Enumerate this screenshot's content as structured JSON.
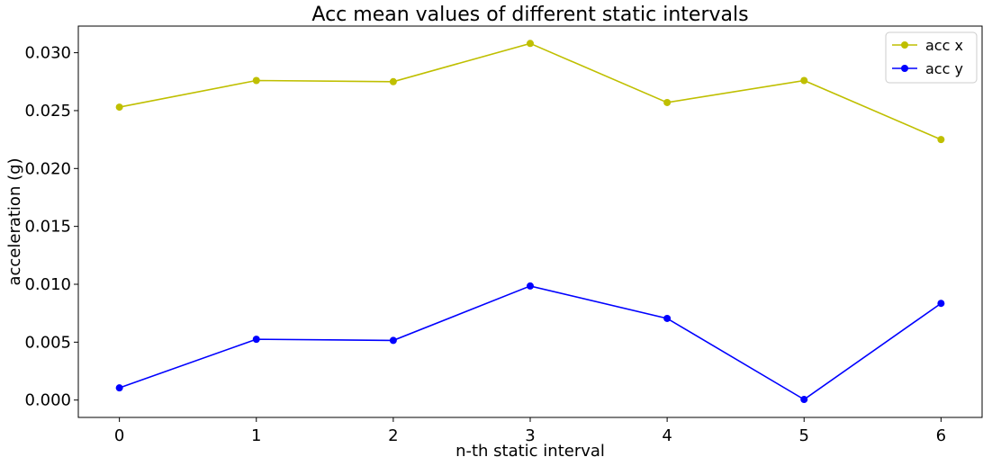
{
  "chart_data": {
    "type": "line",
    "title": "Acc mean values of different static intervals",
    "xlabel": "n-th static interval",
    "ylabel": "acceleration (g)",
    "x": [
      0,
      1,
      2,
      3,
      4,
      5,
      6
    ],
    "x_tick_labels": [
      "0",
      "1",
      "2",
      "3",
      "4",
      "5",
      "6"
    ],
    "y_ticks": [
      0.0,
      0.005,
      0.01,
      0.015,
      0.02,
      0.025,
      0.03
    ],
    "y_tick_labels": [
      "0.000",
      "0.005",
      "0.010",
      "0.015",
      "0.020",
      "0.025",
      "0.030"
    ],
    "xlim": [
      -0.3,
      6.3
    ],
    "ylim": [
      -0.0015,
      0.0323
    ],
    "grid": false,
    "legend_position": "top-right",
    "series": [
      {
        "name": "acc x",
        "color": "#bfbf00",
        "values": [
          0.0253,
          0.0276,
          0.0275,
          0.0308,
          0.0257,
          0.0276,
          0.0225
        ]
      },
      {
        "name": "acc y",
        "color": "#0000ff",
        "values": [
          0.00105,
          0.00525,
          0.00515,
          0.00985,
          0.00705,
          5e-05,
          0.00835
        ]
      }
    ]
  }
}
